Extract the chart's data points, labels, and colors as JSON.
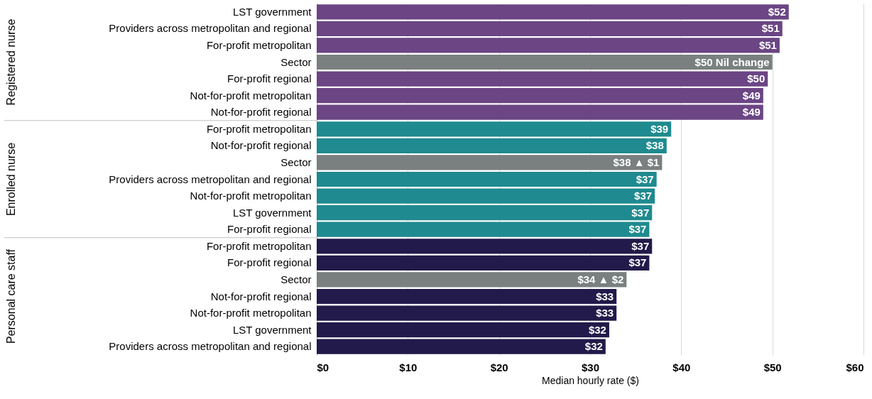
{
  "chart_data": {
    "type": "bar",
    "orientation": "horizontal",
    "xlabel": "Median hourly rate ($)",
    "categories": [
      "LST government",
      "Providers across metropolitan and regional",
      "For-profit metropolitan",
      "Sector",
      "For-profit regional",
      "Not-for-profit metropolitan",
      "Not-for-profit regional",
      "For-profit metropolitan",
      "Not-for-profit regional",
      "Sector",
      "Providers across metropolitan and regional",
      "Not-for-profit metropolitan",
      "LST government",
      "For-profit regional",
      "For-profit metropolitan",
      "For-profit regional",
      "Sector",
      "Not-for-profit regional",
      "Not-for-profit metropolitan",
      "LST government",
      "Providers across metropolitan and regional"
    ],
    "series": [
      {
        "colors": [
          "#6b4584",
          "#6b4584",
          "#6b4584",
          "#7a7f80",
          "#6b4584",
          "#6b4584",
          "#6b4584",
          null,
          null,
          null,
          null,
          null,
          null,
          null,
          null,
          null,
          null,
          null,
          null,
          null,
          null
        ],
        "values": [
          51.8,
          51.1,
          50.8,
          50.0,
          49.5,
          49.0,
          49.0,
          null,
          null,
          null,
          null,
          null,
          null,
          null,
          null,
          null,
          null,
          null,
          null,
          null,
          null
        ],
        "value_labels": [
          "$52",
          "$51",
          "$51",
          "$50 Nil change",
          "$50",
          "$49",
          "$49",
          null,
          null,
          null,
          null,
          null,
          null,
          null,
          null,
          null,
          null,
          null,
          null,
          null,
          null
        ]
      },
      {
        "colors": [
          null,
          null,
          null,
          null,
          null,
          null,
          null,
          "#1f8a8f",
          "#1f8a8f",
          "#7a7f80",
          "#1f8a8f",
          "#1f8a8f",
          "#1f8a8f",
          "#1f8a8f",
          null,
          null,
          null,
          null,
          null,
          null,
          null
        ],
        "values": [
          null,
          null,
          null,
          null,
          null,
          null,
          null,
          38.9,
          38.4,
          37.9,
          37.3,
          37.1,
          36.8,
          36.5,
          null,
          null,
          null,
          null,
          null,
          null,
          null
        ],
        "value_labels": [
          null,
          null,
          null,
          null,
          null,
          null,
          null,
          "$39",
          "$38",
          "$38 ▲ $1",
          "$37",
          "$37",
          "$37",
          "$37",
          null,
          null,
          null,
          null,
          null,
          null,
          null
        ]
      },
      {
        "colors": [
          null,
          null,
          null,
          null,
          null,
          null,
          null,
          null,
          null,
          null,
          null,
          null,
          null,
          null,
          "#221a4a",
          "#221a4a",
          "#7a7f80",
          "#221a4a",
          "#221a4a",
          "#221a4a",
          "#221a4a"
        ],
        "values": [
          null,
          null,
          null,
          null,
          null,
          null,
          null,
          null,
          null,
          null,
          null,
          null,
          null,
          null,
          36.8,
          36.5,
          34.0,
          32.9,
          32.9,
          32.1,
          31.7
        ],
        "value_labels": [
          null,
          null,
          null,
          null,
          null,
          null,
          null,
          null,
          null,
          null,
          null,
          null,
          null,
          null,
          "$37",
          "$37",
          "$34 ▲ $2",
          "$33",
          "$33",
          "$32",
          "$32"
        ]
      }
    ],
    "xlim": [
      0,
      60
    ],
    "xticks": [
      {
        "value": 0,
        "label": "$0"
      },
      {
        "value": 10,
        "label": "$10"
      },
      {
        "value": 20,
        "label": "$20"
      },
      {
        "value": 30,
        "label": "$30"
      },
      {
        "value": 40,
        "label": "$40"
      },
      {
        "value": 50,
        "label": "$50"
      },
      {
        "value": 60,
        "label": "$60"
      }
    ],
    "grid": "x",
    "annotations": [
      "Registered nurse",
      "Enrolled nurse",
      "Personal care staff"
    ]
  }
}
